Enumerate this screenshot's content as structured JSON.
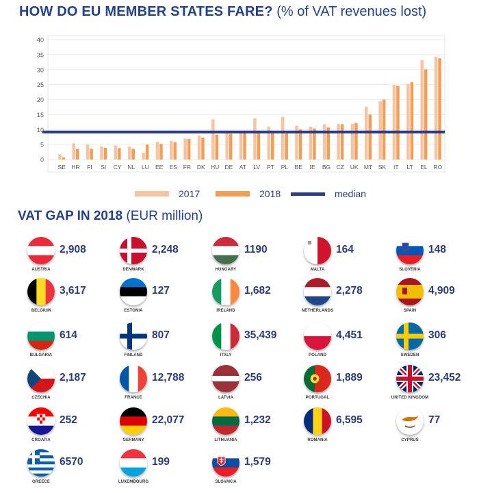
{
  "title": {
    "bold": "HOW DO EU MEMBER STATES FARE?",
    "sub": "(% of VAT revenues lost)"
  },
  "chart_data": {
    "type": "bar",
    "categories": [
      "SE",
      "HR",
      "FI",
      "SI",
      "CY",
      "NL",
      "LU",
      "EE",
      "ES",
      "FR",
      "DK",
      "HU",
      "DE",
      "AT",
      "LV",
      "PT",
      "PL",
      "BE",
      "IE",
      "BG",
      "CZ",
      "UK",
      "MT",
      "SK",
      "IT",
      "LT",
      "EL",
      "RO"
    ],
    "series": [
      {
        "name": "2017",
        "color": "#f7c3a0",
        "values": [
          1.8,
          5.4,
          5.0,
          4.4,
          4.7,
          4.3,
          2.3,
          5.9,
          6.2,
          7.0,
          8.0,
          13.4,
          9.0,
          9.1,
          13.8,
          11.0,
          14.2,
          11.3,
          11.0,
          11.8,
          11.9,
          11.9,
          17.6,
          19.5,
          24.9,
          25.2,
          33.2,
          34.3
        ]
      },
      {
        "name": "2018",
        "color": "#f59c55",
        "values": [
          0.7,
          3.6,
          3.6,
          3.9,
          3.8,
          3.6,
          5.0,
          5.2,
          5.8,
          6.9,
          7.3,
          8.3,
          8.6,
          9.1,
          9.2,
          9.3,
          9.5,
          10.1,
          10.4,
          10.7,
          11.8,
          12.2,
          15.0,
          20.0,
          24.6,
          25.8,
          30.1,
          33.8
        ]
      }
    ],
    "median": {
      "label": "median",
      "value": 9.2,
      "color": "#2a3c8a"
    },
    "ylim": [
      0,
      40
    ],
    "yticks": [
      "0",
      "5",
      "10",
      "15",
      "20",
      "25",
      "30",
      "35",
      "40"
    ],
    "title": "",
    "xlabel": "",
    "ylabel": ""
  },
  "legend": {
    "y2017": "2017",
    "y2018": "2018",
    "median": "median"
  },
  "gap_section": {
    "bold": "VAT GAP IN 2018",
    "sub": "(EUR million)"
  },
  "countries": [
    {
      "name": "AUSTRIA",
      "value": "2,908",
      "flag": "austria-flag"
    },
    {
      "name": "DENMARK",
      "value": "2,248",
      "flag": "denmark-flag"
    },
    {
      "name": "HUNGARY",
      "value": "1190",
      "flag": "hungary-flag"
    },
    {
      "name": "MALTA",
      "value": "164",
      "flag": "malta-flag"
    },
    {
      "name": "SLOVENIA",
      "value": "148",
      "flag": "slovenia-flag"
    },
    {
      "name": "BELGIUM",
      "value": "3,617",
      "flag": "belgium-flag"
    },
    {
      "name": "ESTONIA",
      "value": "127",
      "flag": "estonia-flag"
    },
    {
      "name": "IRELAND",
      "value": "1,682",
      "flag": "ireland-flag"
    },
    {
      "name": "NETHERLANDS",
      "value": "2,278",
      "flag": "netherlands-flag"
    },
    {
      "name": "SPAIN",
      "value": "4,909",
      "flag": "spain-flag"
    },
    {
      "name": "BULGARIA",
      "value": "614",
      "flag": "bulgaria-flag"
    },
    {
      "name": "FINLAND",
      "value": "807",
      "flag": "finland-flag"
    },
    {
      "name": "ITALY",
      "value": "35,439",
      "flag": "italy-flag"
    },
    {
      "name": "POLAND",
      "value": "4,451",
      "flag": "poland-flag"
    },
    {
      "name": "SWEDEN",
      "value": "306",
      "flag": "sweden-flag"
    },
    {
      "name": "CZECHIA",
      "value": "2,187",
      "flag": "czechia-flag"
    },
    {
      "name": "FRANCE",
      "value": "12,788",
      "flag": "france-flag"
    },
    {
      "name": "LATVIA",
      "value": "256",
      "flag": "latvia-flag"
    },
    {
      "name": "PORTUGAL",
      "value": "1,889",
      "flag": "portugal-flag"
    },
    {
      "name": "UNITED KINGDOM",
      "value": "23,452",
      "flag": "uk-flag"
    },
    {
      "name": "CROATIA",
      "value": "252",
      "flag": "croatia-flag"
    },
    {
      "name": "GERMANY",
      "value": "22,077",
      "flag": "germany-flag"
    },
    {
      "name": "LITHUANIA",
      "value": "1,232",
      "flag": "lithuania-flag"
    },
    {
      "name": "ROMANIA",
      "value": "6,595",
      "flag": "romania-flag"
    },
    {
      "name": "CYPRUS",
      "value": "77",
      "flag": "cyprus-flag"
    },
    {
      "name": "GREECE",
      "value": "6570",
      "flag": "greece-flag"
    },
    {
      "name": "LUXEMBOURG",
      "value": "199",
      "flag": "luxembourg-flag"
    },
    {
      "name": "SLOVAKIA",
      "value": "1,579",
      "flag": "slovakia-flag"
    }
  ]
}
